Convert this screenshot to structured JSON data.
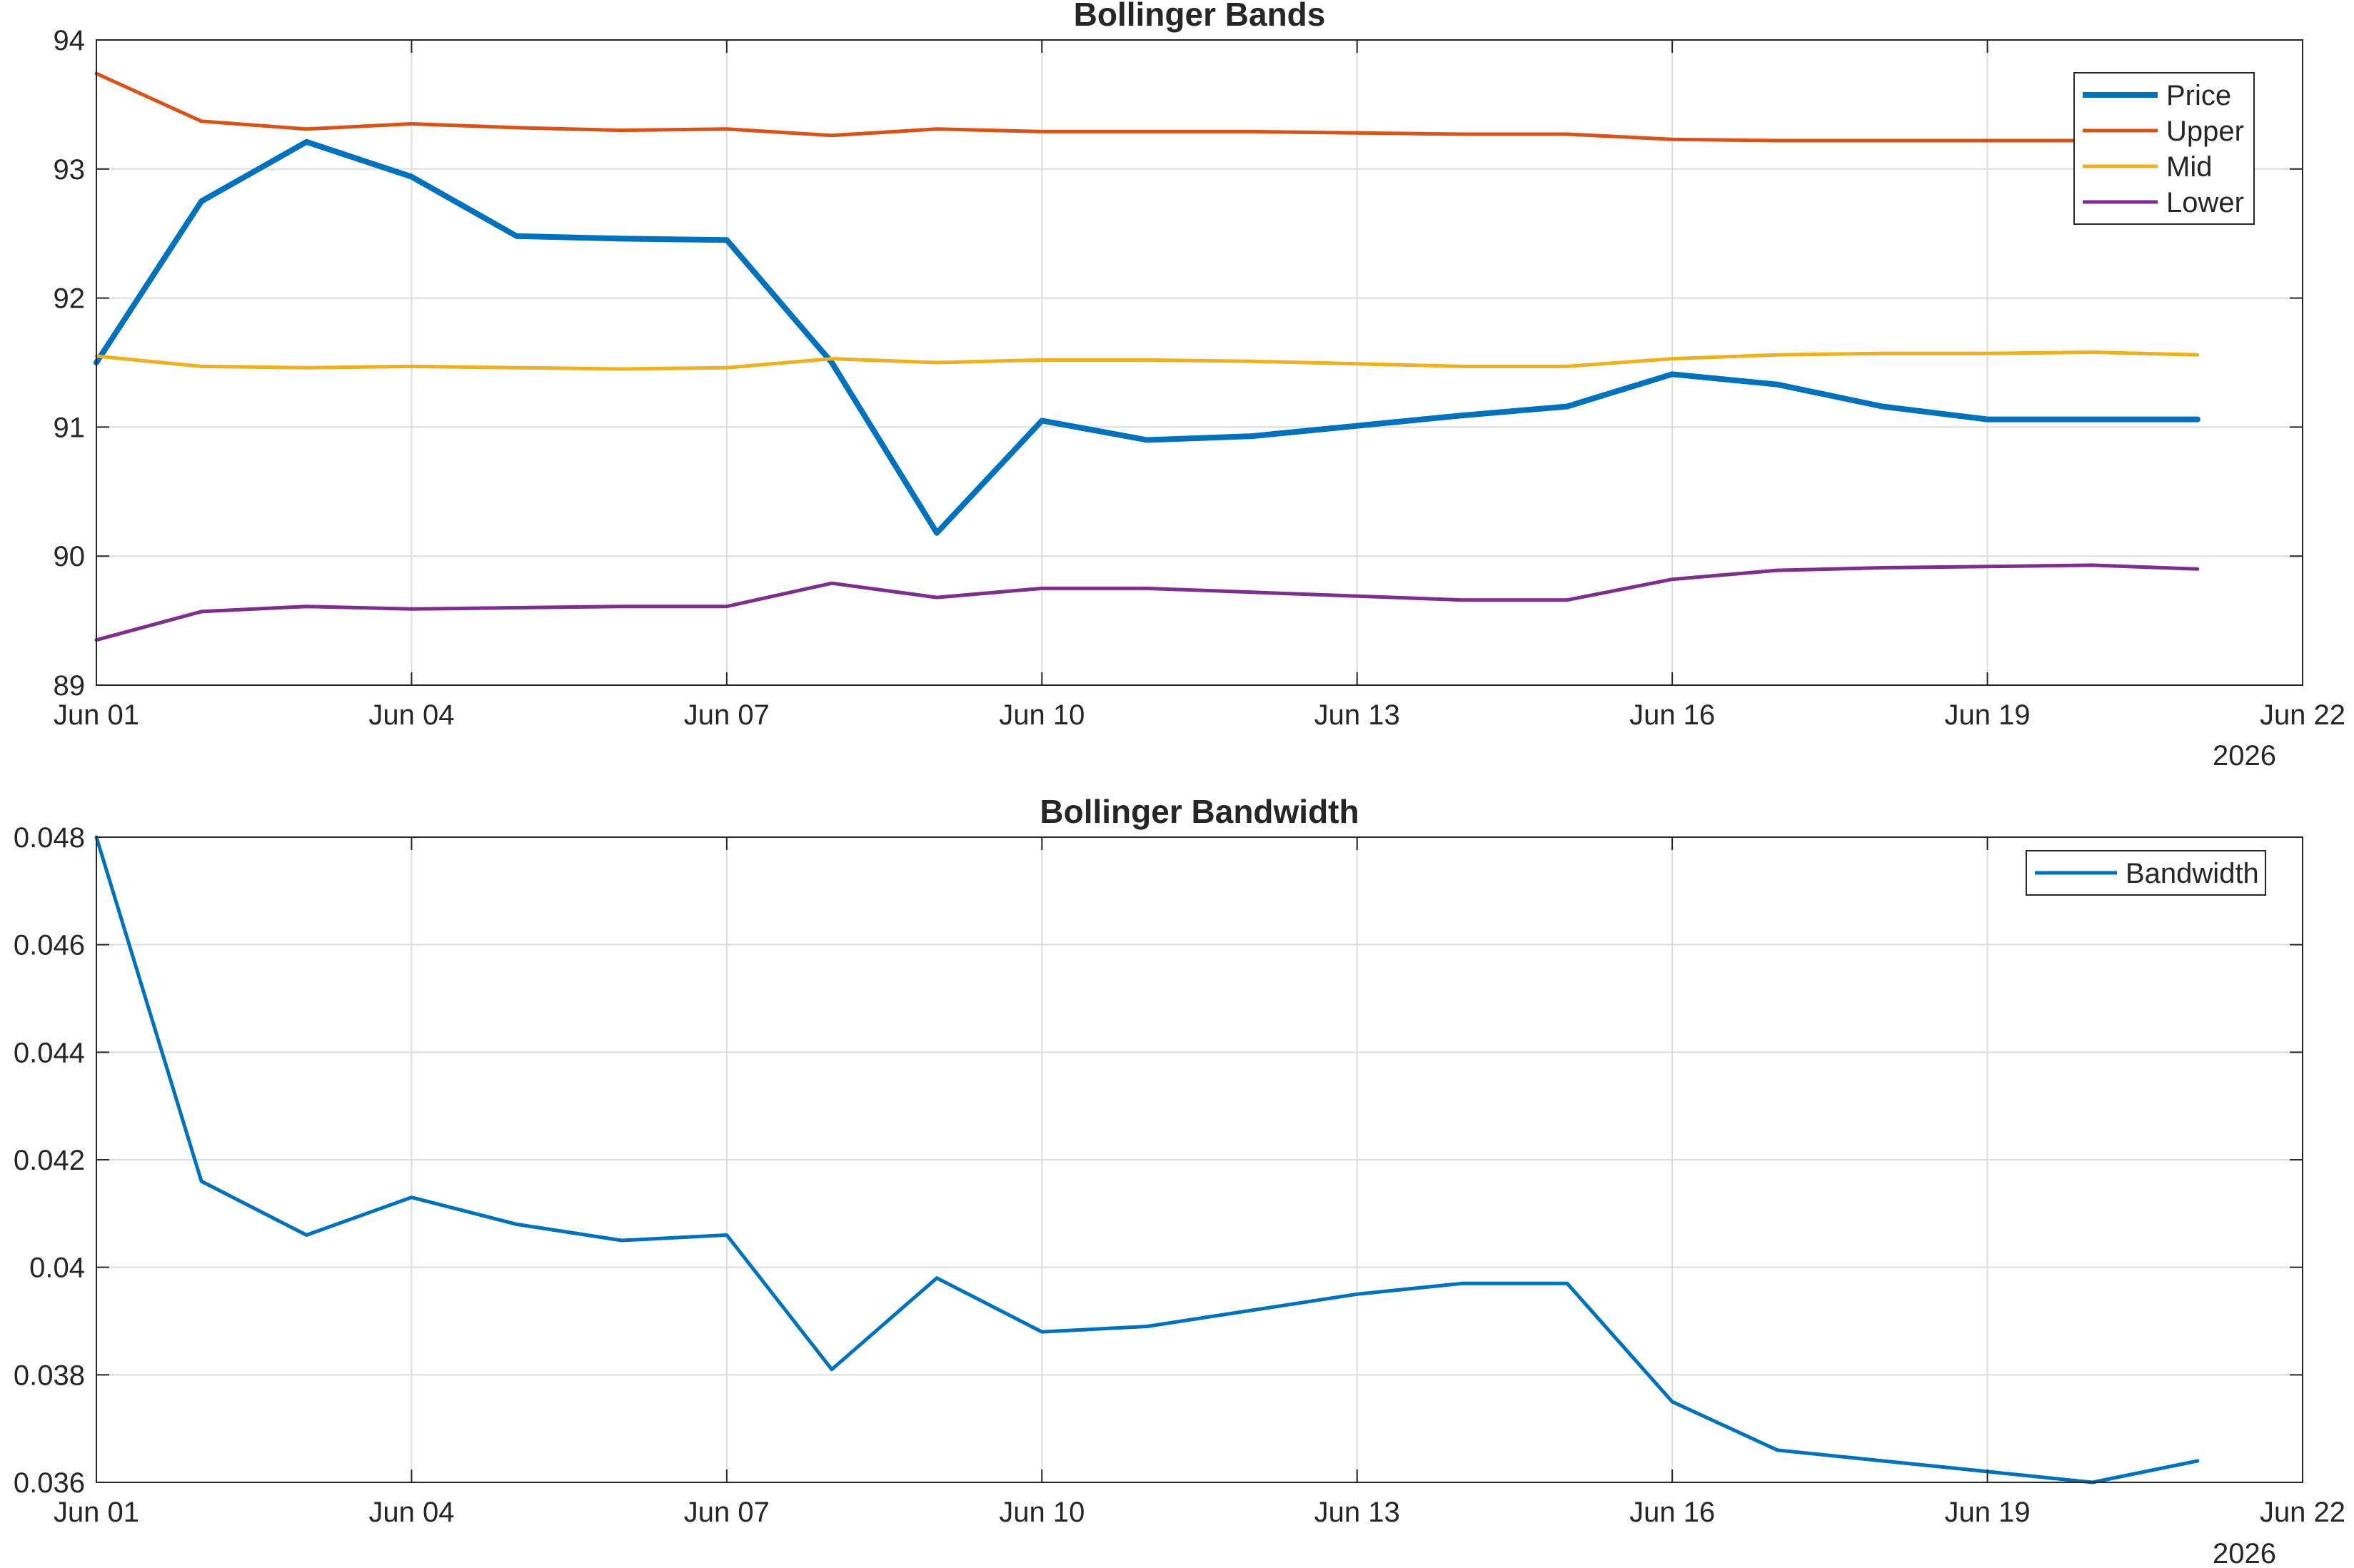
{
  "chart_data": [
    {
      "type": "line",
      "title": "Bollinger Bands",
      "xlabel": "",
      "ylabel": "",
      "x": [
        "Jun 01",
        "Jun 02",
        "Jun 03",
        "Jun 04",
        "Jun 05",
        "Jun 06",
        "Jun 07",
        "Jun 08",
        "Jun 09",
        "Jun 10",
        "Jun 11",
        "Jun 12",
        "Jun 13",
        "Jun 14",
        "Jun 15",
        "Jun 16",
        "Jun 17",
        "Jun 18",
        "Jun 19",
        "Jun 20",
        "Jun 21"
      ],
      "xlim": [
        "Jun 01",
        "Jun 22"
      ],
      "xticks": [
        "Jun 01",
        "Jun 04",
        "Jun 07",
        "Jun 10",
        "Jun 13",
        "Jun 16",
        "Jun 19",
        "Jun 22"
      ],
      "x_secondary_label": "2026",
      "ylim": [
        89,
        94
      ],
      "yticks": [
        "89",
        "90",
        "91",
        "92",
        "93",
        "94"
      ],
      "grid": true,
      "legend_position": "top-right",
      "series": [
        {
          "name": "Price",
          "color": "#0072BD",
          "values": [
            91.5,
            92.75,
            93.21,
            92.94,
            92.48,
            92.46,
            92.45,
            91.5,
            90.18,
            91.05,
            90.9,
            90.93,
            91.01,
            91.09,
            91.16,
            91.41,
            91.33,
            91.16,
            91.06,
            91.06,
            91.06
          ]
        },
        {
          "name": "Upper",
          "color": "#D95319",
          "values": [
            93.74,
            93.37,
            93.31,
            93.35,
            93.32,
            93.3,
            93.31,
            93.26,
            93.31,
            93.29,
            93.29,
            93.29,
            93.28,
            93.27,
            93.27,
            93.23,
            93.22,
            93.22,
            93.22,
            93.22,
            93.22
          ]
        },
        {
          "name": "Mid",
          "color": "#EDB120",
          "values": [
            91.55,
            91.47,
            91.46,
            91.47,
            91.46,
            91.45,
            91.46,
            91.53,
            91.5,
            91.52,
            91.52,
            91.51,
            91.49,
            91.47,
            91.47,
            91.53,
            91.56,
            91.57,
            91.57,
            91.58,
            91.56
          ]
        },
        {
          "name": "Lower",
          "color": "#7E2F8E",
          "values": [
            89.35,
            89.57,
            89.61,
            89.59,
            89.6,
            89.61,
            89.61,
            89.79,
            89.68,
            89.75,
            89.75,
            89.72,
            89.69,
            89.66,
            89.66,
            89.82,
            89.89,
            89.91,
            89.92,
            89.93,
            89.9
          ]
        }
      ]
    },
    {
      "type": "line",
      "title": "Bollinger Bandwidth",
      "xlabel": "",
      "ylabel": "",
      "x": [
        "Jun 01",
        "Jun 02",
        "Jun 03",
        "Jun 04",
        "Jun 05",
        "Jun 06",
        "Jun 07",
        "Jun 08",
        "Jun 09",
        "Jun 10",
        "Jun 11",
        "Jun 12",
        "Jun 13",
        "Jun 14",
        "Jun 15",
        "Jun 16",
        "Jun 17",
        "Jun 18",
        "Jun 19",
        "Jun 20",
        "Jun 21"
      ],
      "xlim": [
        "Jun 01",
        "Jun 22"
      ],
      "xticks": [
        "Jun 01",
        "Jun 04",
        "Jun 07",
        "Jun 10",
        "Jun 13",
        "Jun 16",
        "Jun 19",
        "Jun 22"
      ],
      "x_secondary_label": "2026",
      "ylim": [
        0.036,
        0.048
      ],
      "yticks": [
        "0.036",
        "0.038",
        "0.04",
        "0.042",
        "0.044",
        "0.046",
        "0.048"
      ],
      "grid": true,
      "legend_position": "top-right",
      "series": [
        {
          "name": "Bandwidth",
          "color": "#0072BD",
          "values": [
            0.048,
            0.0416,
            0.0406,
            0.0413,
            0.0408,
            0.0405,
            0.0406,
            0.0381,
            0.0398,
            0.0388,
            0.0389,
            0.0392,
            0.0395,
            0.0397,
            0.0397,
            0.0375,
            0.0366,
            0.0364,
            0.0362,
            0.036,
            0.0364
          ]
        }
      ]
    }
  ]
}
